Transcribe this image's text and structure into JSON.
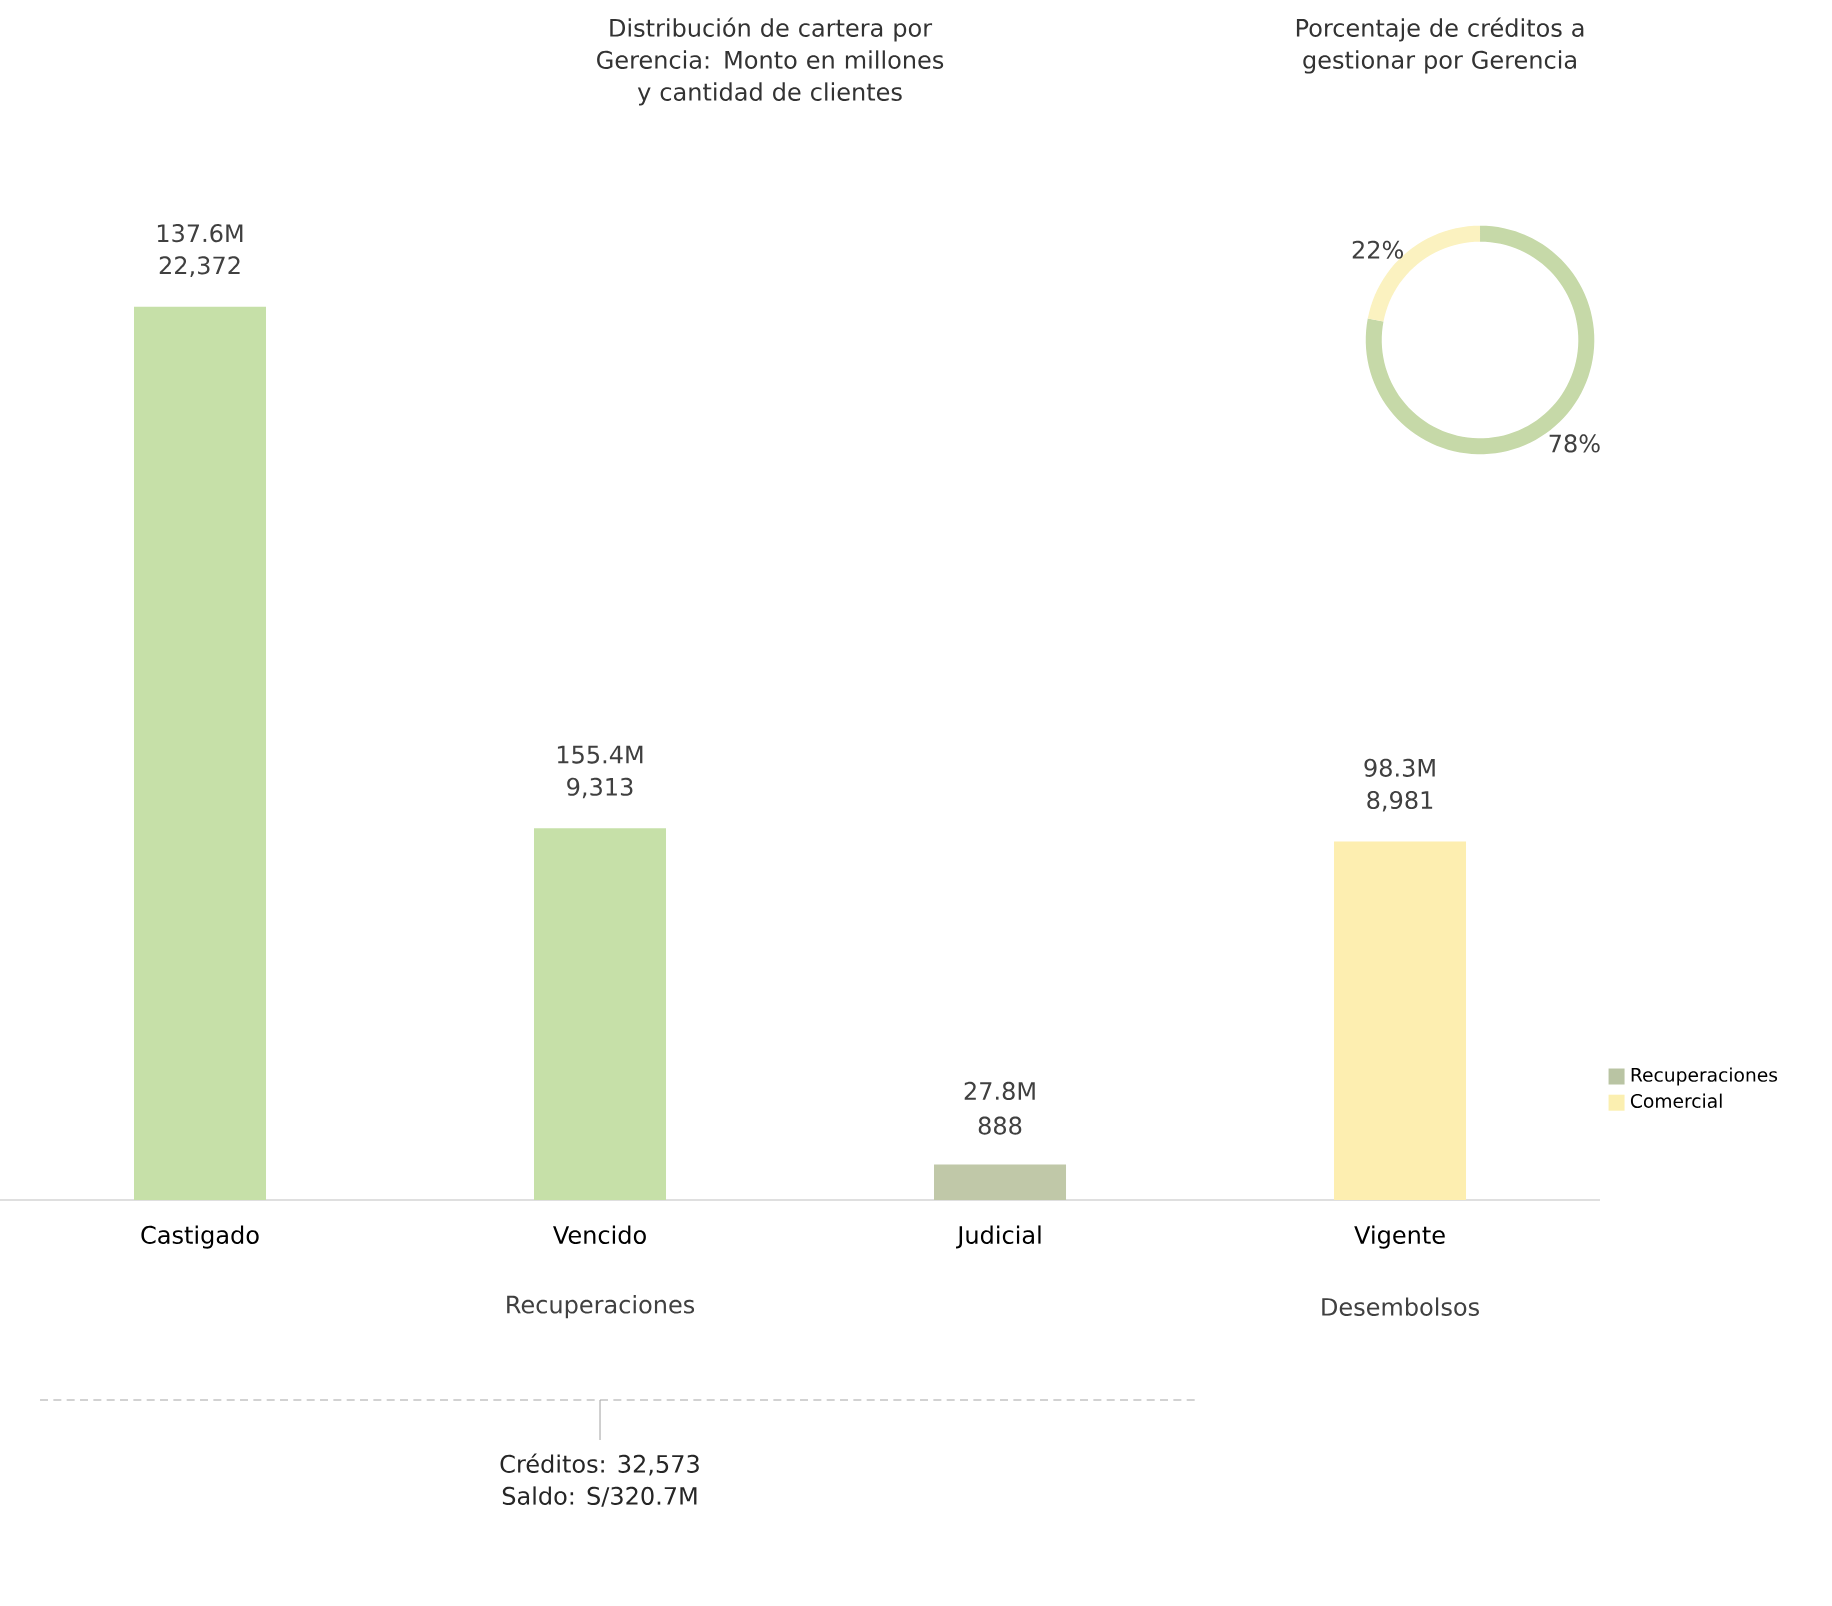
{
  "chart_data": [
    {
      "type": "bar",
      "title": "Distribución de cartera por Gerencia: Monto en millones y cantidad de clientes",
      "categories": [
        "Castigado",
        "Vencido",
        "Judicial",
        "Vigente"
      ],
      "series": [
        {
          "name": "Recuperaciones",
          "color": "#b9c4a3",
          "colors": [
            "#c6e0a8",
            "#c6e0a8",
            "#c0c8a8",
            "#c6e0a8"
          ],
          "values": [
            22372,
            9313,
            888,
            null
          ],
          "value_labels": [
            "22,372",
            "9,313",
            "888",
            null
          ]
        },
        {
          "name": "Comercial",
          "color": "#fbefb0",
          "colors": [
            "#fdeeb0",
            "#fdeeb0",
            "#fdeeb0",
            "#fdeeb0"
          ],
          "values": [
            null,
            null,
            null,
            8981
          ],
          "value_labels": [
            null,
            null,
            null,
            "8,981"
          ]
        }
      ],
      "legend": "right",
      "annotations": [
        {
          "text": "137.6M",
          "x": "Castigado",
          "y": 22372
        },
        {
          "text": "155.4M",
          "x": "Vencido",
          "y": 9313
        },
        {
          "text": "27.8M",
          "x": "Judicial",
          "y": 888
        },
        {
          "text": "98.3M",
          "x": "Vigente",
          "y": 8981
        },
        "Recuperaciones",
        "Desembolsos",
        "Créditos: 32,573",
        "Saldo: S/320.7M"
      ]
    },
    {
      "type": "donut",
      "title": "Porcentaje de créditos a gestionar por Gerencia",
      "categories": [
        null,
        null
      ],
      "values": [
        78,
        22
      ],
      "colors": [
        "#c6d9a8",
        "#fbf2c0"
      ],
      "value_labels": [
        "78%",
        "22%"
      ]
    }
  ]
}
